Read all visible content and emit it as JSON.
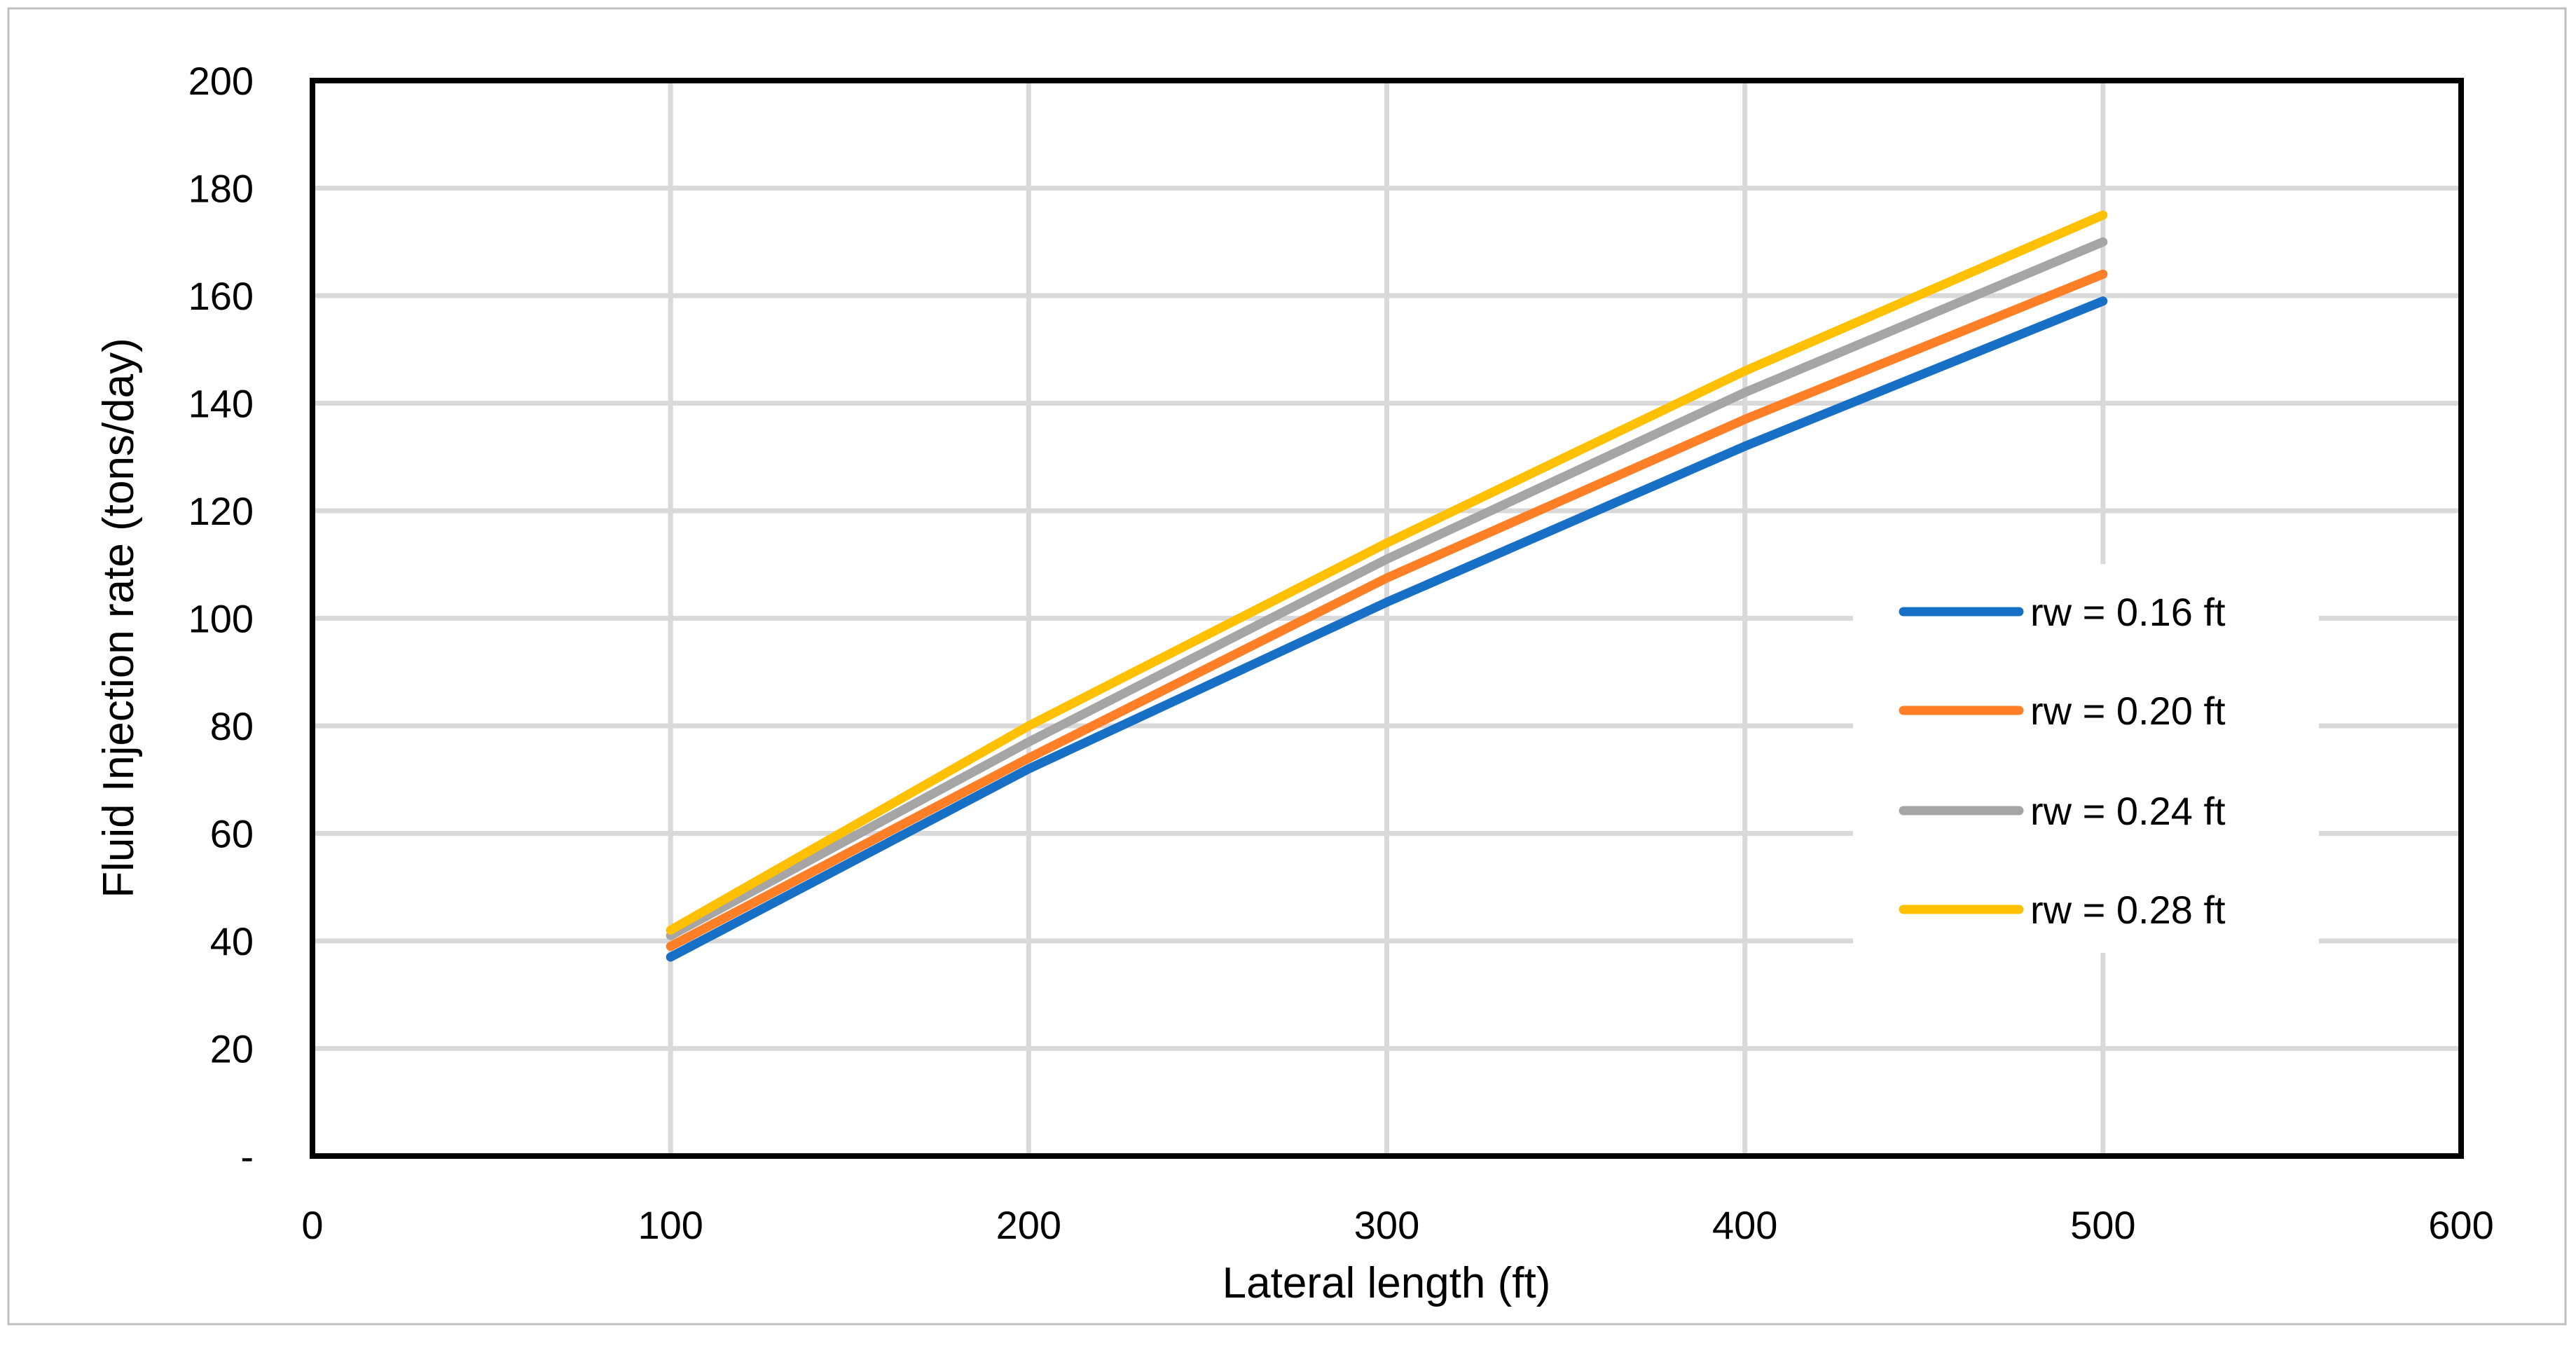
{
  "chart_data": {
    "type": "line",
    "title": "",
    "xlabel": "Lateral length (ft)",
    "ylabel": "Fluid Injection rate (tons/day)",
    "xlim": [
      0,
      600
    ],
    "ylim": [
      0,
      200
    ],
    "x_ticks": [
      "0",
      "100",
      "200",
      "300",
      "400",
      "500",
      "600"
    ],
    "y_ticks": [
      "-",
      "20",
      "40",
      "60",
      "80",
      "100",
      "120",
      "140",
      "160",
      "180",
      "200"
    ],
    "grid": true,
    "legend_position": "right",
    "x": [
      100,
      200,
      300,
      400,
      500
    ],
    "series": [
      {
        "name": "rw = 0.16 ft",
        "color": "#1870C6",
        "values": [
          37,
          72,
          103,
          132,
          159
        ]
      },
      {
        "name": "rw = 0.20 ft",
        "color": "#FF7F27",
        "values": [
          39,
          74,
          107.5,
          137,
          164
        ]
      },
      {
        "name": "rw = 0.24 ft",
        "color": "#A5A5A5",
        "values": [
          41,
          77,
          111,
          142,
          170
        ]
      },
      {
        "name": "rw = 0.28 ft",
        "color": "#FFC000",
        "values": [
          42,
          80,
          114,
          146,
          175
        ]
      }
    ]
  }
}
